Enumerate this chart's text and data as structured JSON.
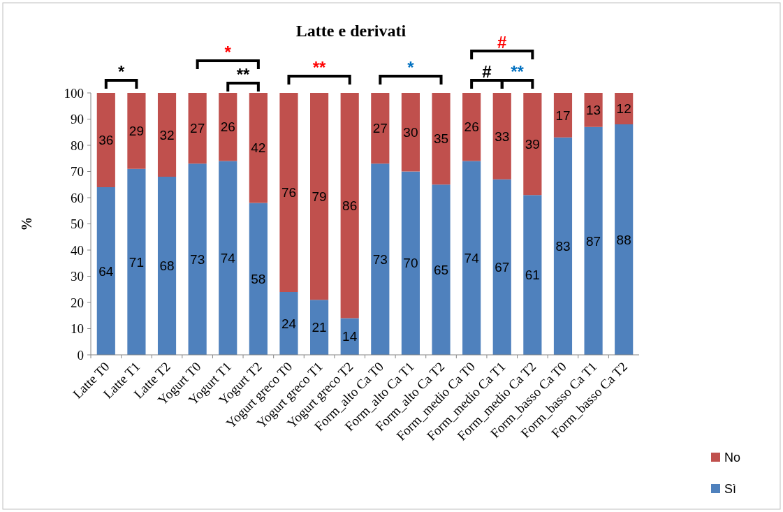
{
  "chart_data": {
    "type": "bar",
    "title": "Latte e derivati",
    "ylabel": "%",
    "stacked": true,
    "data_labels": true,
    "legend": "bottom right",
    "grid": false,
    "categories": [
      "Latte T0",
      "Latte T1",
      "Latte T2",
      "Yogurt T0",
      "Yogurt T1",
      "Yogurt T2",
      "Yogurt greco T0",
      "Yogurt greco T1",
      "Yogurt greco T2",
      "Form_alto Ca T0",
      "Form_alto Ca T1",
      "Form_alto Ca T2",
      "Form_medio Ca T0",
      "Form_medio Ca T1",
      "Form_medio Ca T2",
      "Form_basso Ca T0",
      "Form_basso Ca T1",
      "Form_basso Ca T2"
    ],
    "series": [
      {
        "name": "Sì",
        "color": "#4f81bd",
        "values": [
          64,
          71,
          68,
          73,
          74,
          58,
          24,
          21,
          14,
          73,
          70,
          65,
          74,
          67,
          61,
          83,
          87,
          88
        ]
      },
      {
        "name": "No",
        "color": "#c0504d",
        "values": [
          36,
          29,
          32,
          27,
          26,
          42,
          76,
          79,
          86,
          27,
          30,
          35,
          26,
          33,
          39,
          17,
          13,
          12
        ]
      }
    ],
    "ylim": [
      0,
      100
    ],
    "yticks": [
      0,
      10,
      20,
      30,
      40,
      50,
      60,
      70,
      80,
      90,
      100
    ],
    "annotations": [
      "*",
      "*",
      "**",
      "**",
      "*",
      "#",
      "#",
      "**"
    ]
  }
}
